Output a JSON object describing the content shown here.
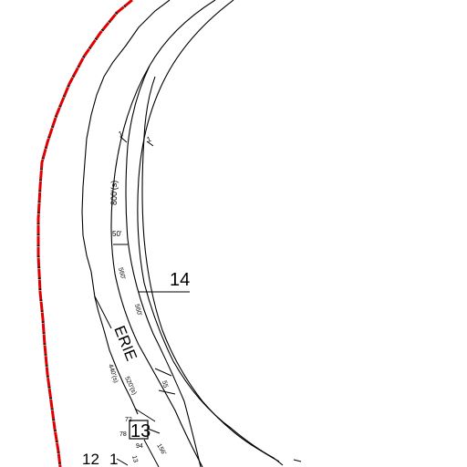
{
  "map": {
    "street_name": "ERIE",
    "labels": {
      "lot_14": "14",
      "lot_13": "13",
      "lot_12": "12",
      "lot_1": "1",
      "dim_800s": "800'(s)",
      "dim_50": "50'",
      "dim_560_a": "560'",
      "dim_560_b": "560'",
      "dim_440s": "440'(s)",
      "dim_520s": "520'(s)",
      "dim_72": "72",
      "dim_78": "78",
      "dim_94": "94",
      "dim_156": "156'",
      "dim_13": "13",
      "dim_55": "55",
      "tick_a": "1",
      "tick_b": "1"
    },
    "boundary_color": "#e00000",
    "line_color": "#000000"
  }
}
